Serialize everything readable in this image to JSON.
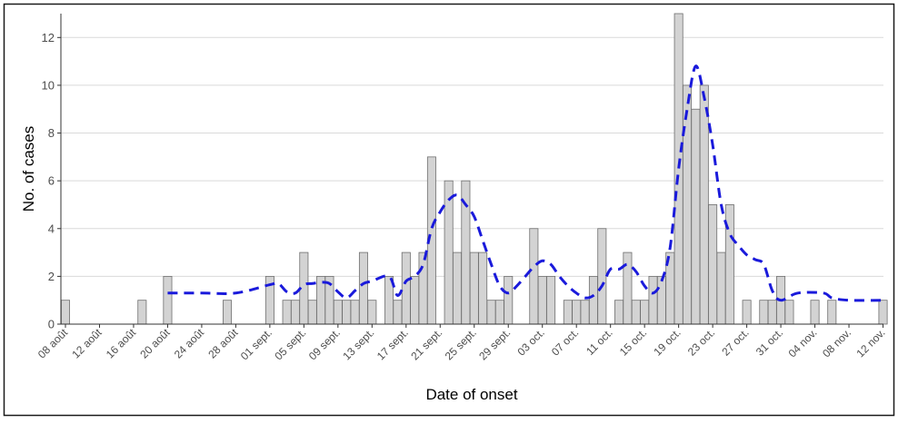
{
  "chart_data": {
    "type": "bar",
    "xlabel": "Date of onset",
    "ylabel": "No. of cases",
    "ylim": [
      0,
      13
    ],
    "yticks": [
      0,
      2,
      4,
      6,
      8,
      10,
      12
    ],
    "xlim": [
      "2019-08-08",
      "2019-11-12"
    ],
    "grid": "horizontal",
    "colors": {
      "bar_fill": "#d3d3d3",
      "bar_stroke": "#6e6e6e",
      "line": "#1a1adb"
    },
    "x_ticks": [
      {
        "date": "2019-08-08",
        "label": "08 août"
      },
      {
        "date": "2019-08-12",
        "label": "12 août"
      },
      {
        "date": "2019-08-16",
        "label": "16 août"
      },
      {
        "date": "2019-08-20",
        "label": "20 août"
      },
      {
        "date": "2019-08-24",
        "label": "24 août"
      },
      {
        "date": "2019-08-28",
        "label": "28 août"
      },
      {
        "date": "2019-09-01",
        "label": "01 sept."
      },
      {
        "date": "2019-09-05",
        "label": "05 sept."
      },
      {
        "date": "2019-09-09",
        "label": "09 sept."
      },
      {
        "date": "2019-09-13",
        "label": "13 sept."
      },
      {
        "date": "2019-09-17",
        "label": "17 sept."
      },
      {
        "date": "2019-09-21",
        "label": "21 sept."
      },
      {
        "date": "2019-09-25",
        "label": "25 sept."
      },
      {
        "date": "2019-09-29",
        "label": "29 sept."
      },
      {
        "date": "2019-10-03",
        "label": "03 oct."
      },
      {
        "date": "2019-10-07",
        "label": "07 oct."
      },
      {
        "date": "2019-10-11",
        "label": "11 oct."
      },
      {
        "date": "2019-10-15",
        "label": "15 oct."
      },
      {
        "date": "2019-10-19",
        "label": "19 oct."
      },
      {
        "date": "2019-10-23",
        "label": "23 oct."
      },
      {
        "date": "2019-10-27",
        "label": "27 oct."
      },
      {
        "date": "2019-10-31",
        "label": "31 oct."
      },
      {
        "date": "2019-11-04",
        "label": "04 nov."
      },
      {
        "date": "2019-11-08",
        "label": "08 nov."
      },
      {
        "date": "2019-11-12",
        "label": "12 nov."
      }
    ],
    "series": [
      {
        "type": "bar",
        "points": [
          [
            "2019-08-08",
            1
          ],
          [
            "2019-08-17",
            1
          ],
          [
            "2019-08-20",
            2
          ],
          [
            "2019-08-27",
            1
          ],
          [
            "2019-09-01",
            2
          ],
          [
            "2019-09-03",
            1
          ],
          [
            "2019-09-04",
            1
          ],
          [
            "2019-09-05",
            3
          ],
          [
            "2019-09-06",
            1
          ],
          [
            "2019-09-07",
            2
          ],
          [
            "2019-09-08",
            2
          ],
          [
            "2019-09-09",
            1
          ],
          [
            "2019-09-10",
            1
          ],
          [
            "2019-09-11",
            1
          ],
          [
            "2019-09-12",
            3
          ],
          [
            "2019-09-13",
            1
          ],
          [
            "2019-09-15",
            2
          ],
          [
            "2019-09-16",
            1
          ],
          [
            "2019-09-17",
            3
          ],
          [
            "2019-09-18",
            2
          ],
          [
            "2019-09-19",
            3
          ],
          [
            "2019-09-20",
            7
          ],
          [
            "2019-09-22",
            6
          ],
          [
            "2019-09-23",
            3
          ],
          [
            "2019-09-24",
            6
          ],
          [
            "2019-09-25",
            3
          ],
          [
            "2019-09-26",
            3
          ],
          [
            "2019-09-27",
            1
          ],
          [
            "2019-09-28",
            1
          ],
          [
            "2019-09-29",
            2
          ],
          [
            "2019-10-02",
            4
          ],
          [
            "2019-10-03",
            2
          ],
          [
            "2019-10-04",
            2
          ],
          [
            "2019-10-06",
            1
          ],
          [
            "2019-10-07",
            1
          ],
          [
            "2019-10-08",
            1
          ],
          [
            "2019-10-09",
            2
          ],
          [
            "2019-10-10",
            4
          ],
          [
            "2019-10-12",
            1
          ],
          [
            "2019-10-13",
            3
          ],
          [
            "2019-10-14",
            1
          ],
          [
            "2019-10-15",
            1
          ],
          [
            "2019-10-16",
            2
          ],
          [
            "2019-10-17",
            2
          ],
          [
            "2019-10-18",
            3
          ],
          [
            "2019-10-19",
            13
          ],
          [
            "2019-10-20",
            10
          ],
          [
            "2019-10-21",
            9
          ],
          [
            "2019-10-22",
            10
          ],
          [
            "2019-10-23",
            5
          ],
          [
            "2019-10-24",
            3
          ],
          [
            "2019-10-25",
            5
          ],
          [
            "2019-10-27",
            1
          ],
          [
            "2019-10-29",
            1
          ],
          [
            "2019-10-30",
            1
          ],
          [
            "2019-10-31",
            2
          ],
          [
            "2019-11-01",
            1
          ],
          [
            "2019-11-04",
            1
          ],
          [
            "2019-11-06",
            1
          ],
          [
            "2019-11-12",
            1
          ]
        ]
      },
      {
        "type": "line",
        "style": "dashed",
        "points": [
          [
            "2019-08-20",
            1.3
          ],
          [
            "2019-08-24",
            1.3
          ],
          [
            "2019-08-28",
            1.3
          ],
          [
            "2019-09-01",
            1.65
          ],
          [
            "2019-09-02",
            1.7
          ],
          [
            "2019-09-03",
            1.35
          ],
          [
            "2019-09-04",
            1.3
          ],
          [
            "2019-09-05",
            1.65
          ],
          [
            "2019-09-06",
            1.7
          ],
          [
            "2019-09-07",
            1.75
          ],
          [
            "2019-09-08",
            1.7
          ],
          [
            "2019-09-09",
            1.35
          ],
          [
            "2019-09-10",
            1.1
          ],
          [
            "2019-09-11",
            1.4
          ],
          [
            "2019-09-12",
            1.7
          ],
          [
            "2019-09-13",
            1.8
          ],
          [
            "2019-09-15",
            2.0
          ],
          [
            "2019-09-16",
            1.2
          ],
          [
            "2019-09-17",
            1.8
          ],
          [
            "2019-09-18",
            2.0
          ],
          [
            "2019-09-19",
            2.5
          ],
          [
            "2019-09-20",
            4.0
          ],
          [
            "2019-09-21",
            4.7
          ],
          [
            "2019-09-22",
            5.2
          ],
          [
            "2019-09-23",
            5.4
          ],
          [
            "2019-09-24",
            5.0
          ],
          [
            "2019-09-25",
            4.5
          ],
          [
            "2019-09-26",
            3.5
          ],
          [
            "2019-09-27",
            2.5
          ],
          [
            "2019-09-28",
            1.6
          ],
          [
            "2019-09-29",
            1.3
          ],
          [
            "2019-09-30",
            1.6
          ],
          [
            "2019-10-01",
            2.0
          ],
          [
            "2019-10-02",
            2.4
          ],
          [
            "2019-10-03",
            2.65
          ],
          [
            "2019-10-04",
            2.5
          ],
          [
            "2019-10-05",
            2.0
          ],
          [
            "2019-10-06",
            1.6
          ],
          [
            "2019-10-07",
            1.3
          ],
          [
            "2019-10-08",
            1.1
          ],
          [
            "2019-10-09",
            1.2
          ],
          [
            "2019-10-10",
            1.6
          ],
          [
            "2019-10-11",
            2.3
          ],
          [
            "2019-10-12",
            2.3
          ],
          [
            "2019-10-13",
            2.5
          ],
          [
            "2019-10-14",
            2.2
          ],
          [
            "2019-10-15",
            1.6
          ],
          [
            "2019-10-16",
            1.3
          ],
          [
            "2019-10-17",
            1.8
          ],
          [
            "2019-10-18",
            3.2
          ],
          [
            "2019-10-19",
            6.5
          ],
          [
            "2019-10-20",
            9.0
          ],
          [
            "2019-10-21",
            10.8
          ],
          [
            "2019-10-22",
            9.5
          ],
          [
            "2019-10-23",
            7.5
          ],
          [
            "2019-10-24",
            5.0
          ],
          [
            "2019-10-25",
            3.8
          ],
          [
            "2019-10-26",
            3.3
          ],
          [
            "2019-10-27",
            2.9
          ],
          [
            "2019-10-28",
            2.7
          ],
          [
            "2019-10-29",
            2.5
          ],
          [
            "2019-10-30",
            1.4
          ],
          [
            "2019-10-31",
            1.0
          ],
          [
            "2019-11-02",
            1.3
          ],
          [
            "2019-11-05",
            1.3
          ],
          [
            "2019-11-06",
            1.1
          ],
          [
            "2019-11-08",
            1.0
          ],
          [
            "2019-11-12",
            1.0
          ]
        ]
      }
    ]
  }
}
